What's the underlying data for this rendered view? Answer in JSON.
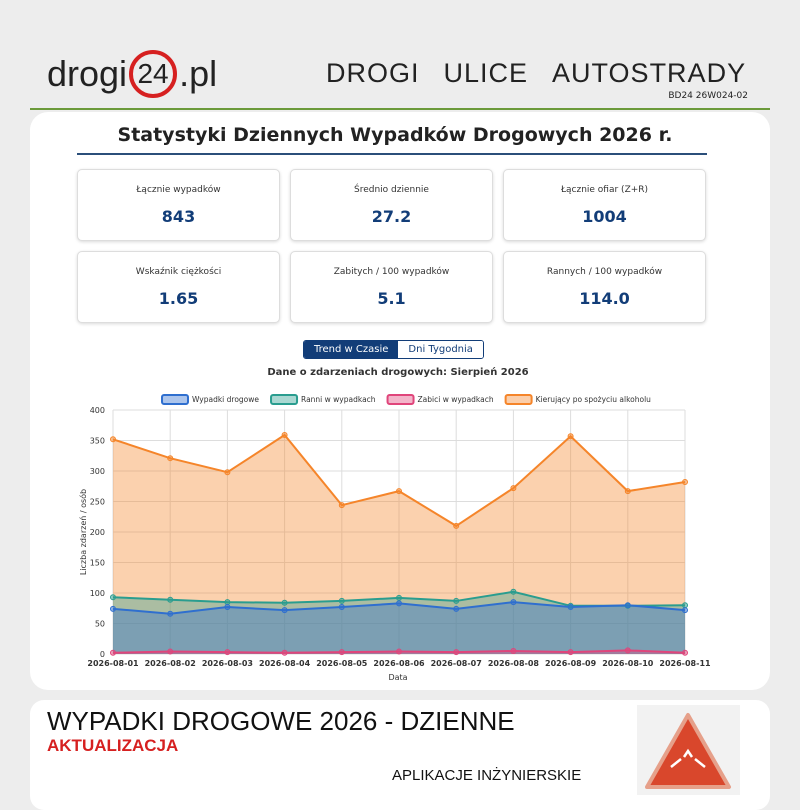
{
  "header": {
    "logo": {
      "left": "drogi",
      "circle": "24",
      "right": ".pl"
    },
    "nav": [
      "DROGI",
      "ULICE",
      "AUTOSTRADY"
    ],
    "code": "BD24 26W024-02"
  },
  "dashboard": {
    "title": "Statystyki Dziennych Wypadków Drogowych 2026 r.",
    "stats": [
      {
        "label": "Łącznie wypadków",
        "value": "843"
      },
      {
        "label": "Średnio dziennie",
        "value": "27.2"
      },
      {
        "label": "Łącznie ofiar (Z+R)",
        "value": "1004"
      },
      {
        "label": "Wskaźnik ciężkości",
        "value": "1.65"
      },
      {
        "label": "Zabitych / 100 wypadków",
        "value": "5.1"
      },
      {
        "label": "Rannych / 100 wypadków",
        "value": "114.0"
      }
    ],
    "tabs": [
      "Trend w Czasie",
      "Dni Tygodnia"
    ]
  },
  "chart_data": {
    "type": "area",
    "title": "Dane o zdarzeniach drogowych: Sierpień 2026",
    "x_label": "Data",
    "y_label": "Liczba zdarzeń / osób",
    "categories": [
      "2026-08-01",
      "2026-08-02",
      "2026-08-03",
      "2026-08-04",
      "2026-08-05",
      "2026-08-06",
      "2026-08-07",
      "2026-08-08",
      "2026-08-09",
      "2026-08-10",
      "2026-08-11"
    ],
    "series": [
      {
        "name": "Wypadki drogowe",
        "color": "#2f6fcf",
        "values": [
          74,
          66,
          77,
          72,
          77,
          83,
          74,
          85,
          77,
          80,
          72
        ]
      },
      {
        "name": "Ranni w wypadkach",
        "color": "#2a9d8f",
        "values": [
          93,
          89,
          85,
          84,
          87,
          92,
          87,
          102,
          79,
          79,
          80
        ]
      },
      {
        "name": "Zabici w wypadkach",
        "color": "#e0457b",
        "values": [
          2,
          4,
          3,
          2,
          3,
          4,
          3,
          5,
          3,
          6,
          2
        ]
      },
      {
        "name": "Kierujący po spożyciu alkoholu",
        "color": "#f5852a",
        "values": [
          352,
          321,
          298,
          359,
          244,
          267,
          210,
          272,
          357,
          267,
          282
        ]
      }
    ],
    "ylim": [
      0,
      400
    ],
    "yticks": [
      0,
      50,
      100,
      150,
      200,
      250,
      300,
      350,
      400
    ],
    "grid": true
  },
  "footer": {
    "title": "WYPADKI DROGOWE 2026 - DZIENNE",
    "subtitle": "AKTUALIZACJA",
    "brand": "APLIKACJE INŻYNIERSKIE"
  }
}
